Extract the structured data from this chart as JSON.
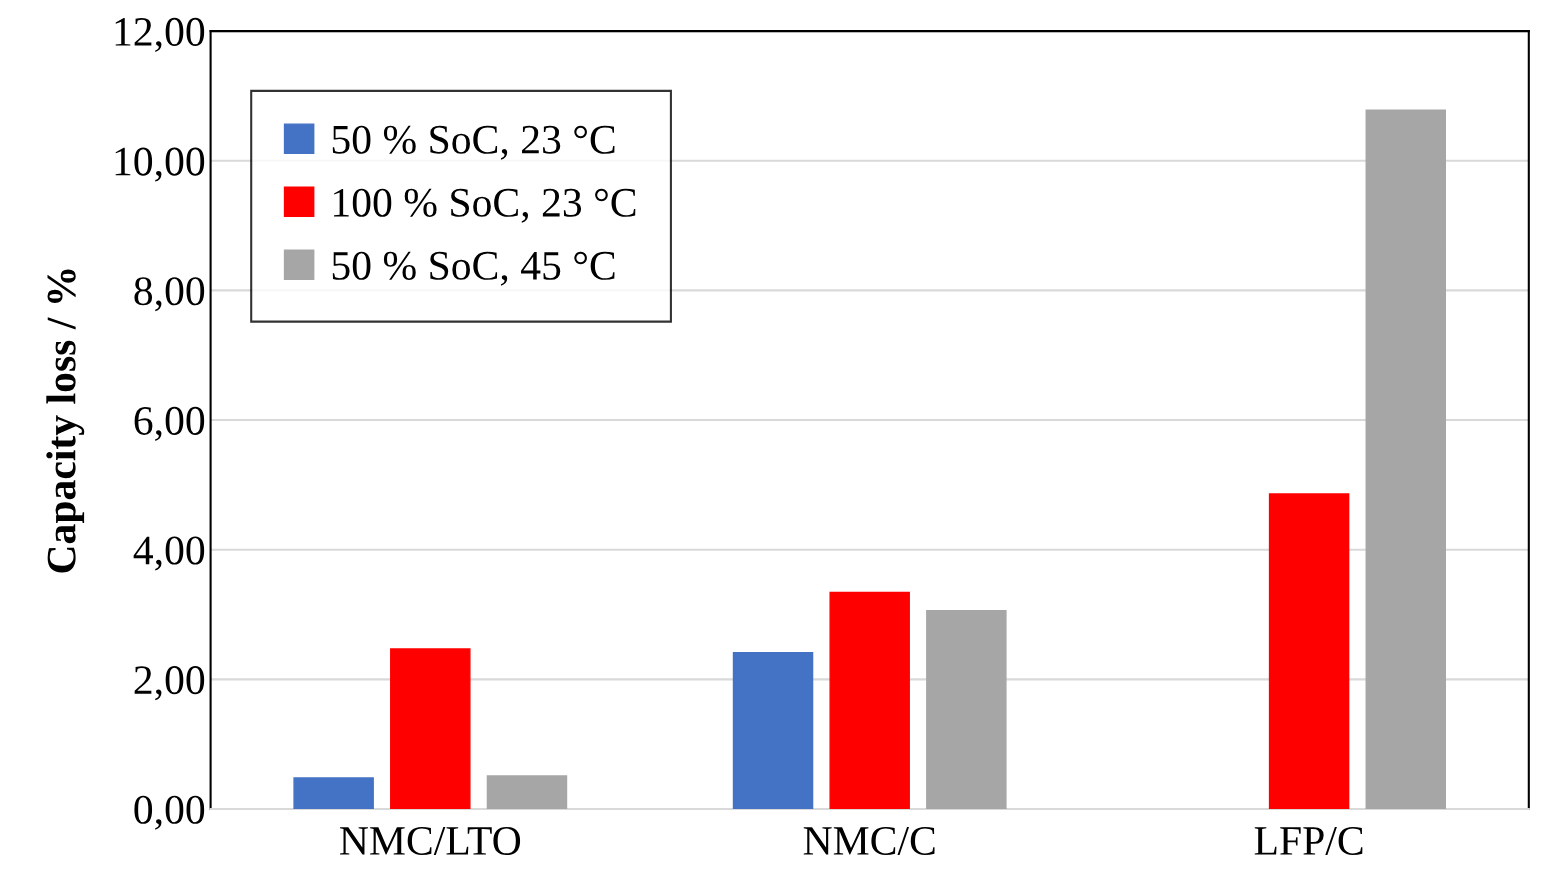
{
  "chart_data": {
    "type": "bar",
    "ylabel": "Capacity loss / %",
    "categories": [
      "NMC/LTO",
      "NMC/C",
      "LFP/C"
    ],
    "series": [
      {
        "name": "50 % SoC, 23 °C",
        "color": "#4472c4",
        "values": [
          0.48,
          2.41,
          null
        ]
      },
      {
        "name": "100 % SoC, 23 °C",
        "color": "#ff0000",
        "values": [
          2.47,
          3.34,
          4.86
        ]
      },
      {
        "name": "50 % SoC, 45 °C",
        "color": "#a6a6a6",
        "values": [
          0.51,
          3.06,
          10.78
        ]
      }
    ],
    "ylim": [
      0,
      12
    ],
    "yticks": [
      {
        "value": 0,
        "label": "0,00"
      },
      {
        "value": 2,
        "label": "2,00"
      },
      {
        "value": 4,
        "label": "4,00"
      },
      {
        "value": 6,
        "label": "6,00"
      },
      {
        "value": 8,
        "label": "8,00"
      },
      {
        "value": 10,
        "label": "10,00"
      },
      {
        "value": 12,
        "label": "12,00"
      }
    ],
    "grid": "y",
    "legend": "top left"
  }
}
